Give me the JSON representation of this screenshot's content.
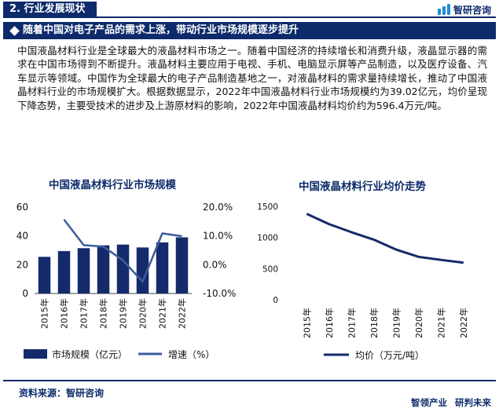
{
  "header": {
    "section": "2. 行业发展现状",
    "logo": "智研咨询"
  },
  "banner": {
    "title": "随着中国对电子产品的需求上涨，带动行业市场规模逐步提升"
  },
  "body": {
    "paragraph": "中国液晶材料行业是全球最大的液晶材料市场之一。随着中国经济的持续增长和消费升级，液晶显示器的需求在中国市场得到不断提升。液晶材料主要应用于电视、手机、电脑显示屏等产品制造，以及医疗设备、汽车显示等领域。中国作为全球最大的电子产品制造基地之一，对液晶材料的需求量持续增长，推动了中国液晶材料行业的市场规模扩大。根据数据显示，2022年中国液晶材料行业市场规模约为39.02亿元，均价呈现下降态势，主要受技术的进步及上游原材料的影响，2022年中国液晶材料均价约为596.4万元/吨。"
  },
  "footer": {
    "source": "资料来源：智研咨询",
    "brand_left": "智领产业",
    "brand_right": "研判未来"
  },
  "colors": {
    "navy": "#0d2b6b",
    "bar": "#152a6a",
    "line": "#3d5d9c",
    "axis": "#444444"
  },
  "chart_data": [
    {
      "type": "bar",
      "title": "中国液晶材料行业市场规模",
      "categories": [
        "2015年",
        "2016年",
        "2017年",
        "2018年",
        "2019年",
        "2020年",
        "2021年",
        "2022年"
      ],
      "series": [
        {
          "name": "市场规模（亿元）",
          "type": "bar",
          "axis": "left",
          "values": [
            25.5,
            29.5,
            31.5,
            33.5,
            34.0,
            32.0,
            35.5,
            39.02
          ]
        },
        {
          "name": "增速（%）",
          "type": "line",
          "axis": "right",
          "values": [
            null,
            15.7,
            6.8,
            6.3,
            1.5,
            -5.9,
            10.9,
            9.9
          ]
        }
      ],
      "y_left": {
        "ylim": [
          0,
          60
        ],
        "ticks": [
          "0",
          "20",
          "40",
          "60"
        ],
        "tick_values": [
          0,
          20,
          40,
          60
        ]
      },
      "y_right": {
        "ylim": [
          -10,
          20
        ],
        "ticks": [
          "-10.0%",
          "0.0%",
          "10.0%",
          "20.0%"
        ],
        "tick_values": [
          -10,
          0,
          10,
          20
        ]
      },
      "legend": "bottom"
    },
    {
      "type": "line",
      "title": "中国液晶材料行业均价走势",
      "categories": [
        "2015年",
        "2016年",
        "2017年",
        "2018年",
        "2019年",
        "2020年",
        "2021年",
        "2022年"
      ],
      "series": [
        {
          "name": "均价（万元/吨）",
          "values": [
            1380,
            1215,
            1085,
            965,
            805,
            690,
            640,
            596.4
          ]
        }
      ],
      "y": {
        "ylim": [
          0,
          1500
        ],
        "ticks": [
          "0",
          "500",
          "1000",
          "1500"
        ],
        "tick_values": [
          0,
          500,
          1000,
          1500
        ]
      },
      "legend": "bottom"
    }
  ]
}
